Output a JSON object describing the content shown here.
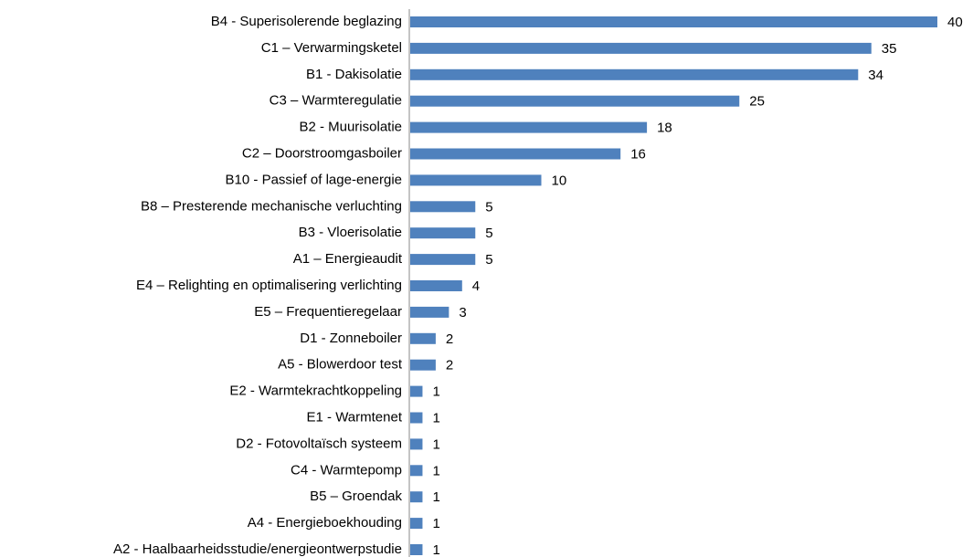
{
  "chart_data": {
    "type": "bar",
    "orientation": "horizontal",
    "color": "#4f81bd",
    "categories": [
      "B4 - Superisolerende beglazing",
      "C1 – Verwarmingsketel",
      "B1 - Dakisolatie",
      "C3 – Warmteregulatie",
      "B2 - Muurisolatie",
      "C2 – Doorstroomgasboiler",
      "B10 - Passief of lage-energie",
      "B8 – Presterende mechanische verluchting",
      "B3 - Vloerisolatie",
      "A1 – Energieaudit",
      "E4 – Relighting en optimalisering verlichting",
      "E5 – Frequentieregelaar",
      "D1 - Zonneboiler",
      "A5 - Blowerdoor test",
      "E2 - Warmtekrachtkoppeling",
      "E1 - Warmtenet",
      "D2 - Fotovoltaïsch systeem",
      "C4 - Warmtepomp",
      "B5 – Groendak",
      "A4 - Energieboekhouding",
      "A2 - Haalbaarheidsstudie/energieontwerpstudie"
    ],
    "values": [
      40,
      35,
      34,
      25,
      18,
      16,
      10,
      5,
      5,
      5,
      4,
      3,
      2,
      2,
      1,
      1,
      1,
      1,
      1,
      1,
      1
    ]
  }
}
